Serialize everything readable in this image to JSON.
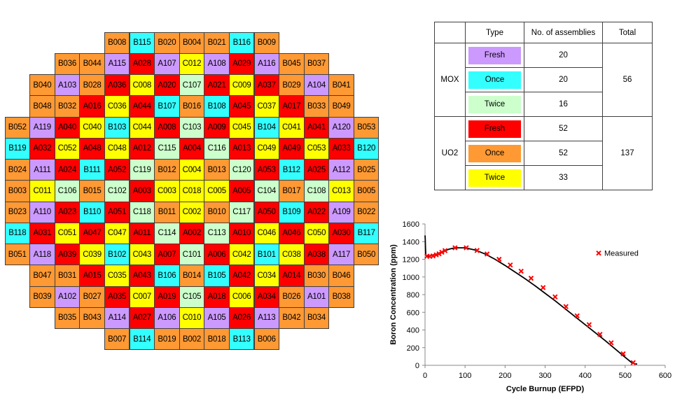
{
  "core_map": {
    "rows": [
      [
        "B008",
        "B115",
        "B020",
        "B004",
        "B021",
        "B116",
        "B009"
      ],
      [
        "B036",
        "B044",
        "A115",
        "A028",
        "A107",
        "C012",
        "A108",
        "A029",
        "A116",
        "B045",
        "B037"
      ],
      [
        "B040",
        "A103",
        "B028",
        "A036",
        "C008",
        "A020",
        "C107",
        "A021",
        "C009",
        "A037",
        "B029",
        "A104",
        "B041"
      ],
      [
        "B048",
        "B032",
        "A016",
        "C036",
        "A044",
        "B107",
        "B016",
        "B108",
        "A045",
        "C037",
        "A017",
        "B033",
        "B049"
      ],
      [
        "B052",
        "A119",
        "A040",
        "C040",
        "B103",
        "C044",
        "A008",
        "C103",
        "A009",
        "C045",
        "B104",
        "C041",
        "A041",
        "A120",
        "B053"
      ],
      [
        "B119",
        "A032",
        "C052",
        "A048",
        "C048",
        "A012",
        "C115",
        "A004",
        "C116",
        "A013",
        "C049",
        "A049",
        "C053",
        "A033",
        "B120"
      ],
      [
        "B024",
        "A111",
        "A024",
        "B111",
        "A052",
        "C119",
        "B012",
        "C004",
        "B013",
        "C120",
        "A053",
        "B112",
        "A025",
        "A112",
        "B025"
      ],
      [
        "B003",
        "C011",
        "C106",
        "B015",
        "C102",
        "A003",
        "C003",
        "C018",
        "C005",
        "A005",
        "C104",
        "B017",
        "C108",
        "C013",
        "B005"
      ],
      [
        "B023",
        "A110",
        "A023",
        "B110",
        "A051",
        "C118",
        "B011",
        "C002",
        "B010",
        "C117",
        "A050",
        "B109",
        "A022",
        "A109",
        "B022"
      ],
      [
        "B118",
        "A031",
        "C051",
        "A047",
        "C047",
        "A011",
        "C114",
        "A002",
        "C113",
        "A010",
        "C046",
        "A046",
        "C050",
        "A030",
        "B117"
      ],
      [
        "B051",
        "A118",
        "A039",
        "C039",
        "B102",
        "C043",
        "A007",
        "C101",
        "A006",
        "C042",
        "B101",
        "C038",
        "A038",
        "A117",
        "B050"
      ],
      [
        "B047",
        "B031",
        "A015",
        "C035",
        "A043",
        "B106",
        "B014",
        "B105",
        "A042",
        "C034",
        "A014",
        "B030",
        "B046"
      ],
      [
        "B039",
        "A102",
        "B027",
        "A035",
        "C007",
        "A019",
        "C105",
        "A018",
        "C006",
        "A034",
        "B026",
        "A101",
        "B038"
      ],
      [
        "B035",
        "B043",
        "A114",
        "A027",
        "A106",
        "C010",
        "A105",
        "A026",
        "A113",
        "B042",
        "B034"
      ],
      [
        "B007",
        "B114",
        "B019",
        "B002",
        "B018",
        "B113",
        "B006"
      ]
    ],
    "colors": {
      "mox_fresh": "#cc99ff",
      "mox_once": "#33ffff",
      "mox_twice": "#ccffcc",
      "uo2_fresh": "#ff0000",
      "uo2_once": "#ff9933",
      "uo2_twice": "#ffff00"
    }
  },
  "assembly_table": {
    "headers": [
      "",
      "Type",
      "No. of assemblies",
      "Total"
    ],
    "groups": [
      {
        "name": "MOX",
        "total": "56",
        "rows": [
          {
            "type": "Fresh",
            "count": "20",
            "color": "#cc99ff"
          },
          {
            "type": "Once",
            "count": "20",
            "color": "#33ffff"
          },
          {
            "type": "Twice",
            "count": "16",
            "color": "#ccffcc"
          }
        ]
      },
      {
        "name": "UO2",
        "total": "137",
        "rows": [
          {
            "type": "Fresh",
            "count": "52",
            "color": "#ff0000"
          },
          {
            "type": "Once",
            "count": "52",
            "color": "#ff9933"
          },
          {
            "type": "Twice",
            "count": "33",
            "color": "#ffff00"
          }
        ]
      }
    ]
  },
  "chart_data": {
    "type": "line",
    "xlabel": "Cycle Burnup (EFPD)",
    "ylabel": "Boron Concentration (ppm)",
    "xlim": [
      0,
      600
    ],
    "ylim": [
      0,
      1600
    ],
    "xticks": [
      "0",
      "100",
      "200",
      "300",
      "400",
      "500",
      "600"
    ],
    "yticks": [
      "0",
      "200",
      "400",
      "600",
      "800",
      "1000",
      "1200",
      "1400",
      "1600"
    ],
    "grid": false,
    "legend": "right",
    "series": [
      {
        "name": "",
        "style": "line",
        "color": "#000000",
        "x": [
          0,
          0.5,
          1,
          1.5,
          2,
          3,
          5,
          8,
          12,
          20,
          30,
          40,
          50,
          60,
          75,
          100,
          125,
          150,
          175,
          200,
          225,
          250,
          275,
          300,
          325,
          350,
          375,
          400,
          425,
          450,
          475,
          500,
          515,
          525,
          530
        ],
        "y": [
          1470,
          1430,
          1340,
          1280,
          1250,
          1240,
          1238,
          1236,
          1240,
          1248,
          1262,
          1280,
          1298,
          1315,
          1330,
          1330,
          1305,
          1260,
          1200,
          1130,
          1055,
          980,
          900,
          815,
          730,
          640,
          550,
          460,
          370,
          280,
          185,
          90,
          35,
          15,
          15
        ]
      },
      {
        "name": "Measured",
        "style": "marker",
        "color": "#ff0000",
        "x": [
          5,
          12,
          20,
          28,
          35,
          42,
          50,
          75,
          103,
          130,
          155,
          185,
          213,
          240,
          265,
          295,
          325,
          352,
          380,
          410,
          437,
          465,
          495,
          520
        ],
        "y": [
          1235,
          1232,
          1238,
          1250,
          1262,
          1280,
          1298,
          1330,
          1330,
          1300,
          1260,
          1200,
          1135,
          1065,
          985,
          880,
          775,
          665,
          560,
          460,
          350,
          255,
          130,
          30
        ]
      }
    ]
  }
}
